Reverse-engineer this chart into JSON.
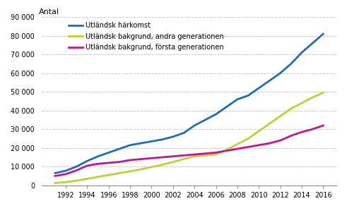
{
  "years": [
    1991,
    1992,
    1993,
    1994,
    1995,
    1996,
    1997,
    1998,
    1999,
    2000,
    2001,
    2002,
    2003,
    2004,
    2005,
    2006,
    2007,
    2008,
    2009,
    2010,
    2011,
    2012,
    2013,
    2014,
    2015,
    2016
  ],
  "utlandsk_harkomst": [
    6500,
    7800,
    10000,
    13000,
    15500,
    17500,
    19500,
    21500,
    22500,
    23500,
    24500,
    26000,
    28000,
    32000,
    35000,
    38000,
    42000,
    46000,
    48000,
    52000,
    56000,
    60000,
    65000,
    71000,
    76000,
    81000
  ],
  "andra_generationen": [
    1200,
    1700,
    2500,
    3500,
    4500,
    5500,
    6500,
    7500,
    8500,
    9800,
    11000,
    12500,
    14000,
    15500,
    16000,
    16500,
    19000,
    22000,
    25000,
    29000,
    33000,
    37000,
    41000,
    44000,
    47000,
    49500
  ],
  "forsta_generationen": [
    5000,
    6000,
    8000,
    10500,
    11500,
    12000,
    12500,
    13500,
    14000,
    14500,
    15000,
    15500,
    16000,
    16500,
    17000,
    17500,
    18500,
    19500,
    20500,
    21500,
    22500,
    24000,
    26500,
    28500,
    30000,
    32000
  ],
  "line_color_harkomst": "#1F6CB0",
  "line_color_andra": "#BFCE3B",
  "line_color_forsta": "#C0178C",
  "ylabel": "Antal",
  "ylim": [
    0,
    90000
  ],
  "yticks": [
    0,
    10000,
    20000,
    30000,
    40000,
    50000,
    60000,
    70000,
    80000,
    90000
  ],
  "xticks": [
    1992,
    1994,
    1996,
    1998,
    2000,
    2002,
    2004,
    2006,
    2008,
    2010,
    2012,
    2014,
    2016
  ],
  "legend_labels": [
    "Utländsk härkomst",
    "Utländsk bakgrund, andra generationen",
    "Utländsk bakgrund, första generationen"
  ],
  "background_color": "#ffffff",
  "grid_color": "#c8c8c8",
  "linewidth": 2.0
}
